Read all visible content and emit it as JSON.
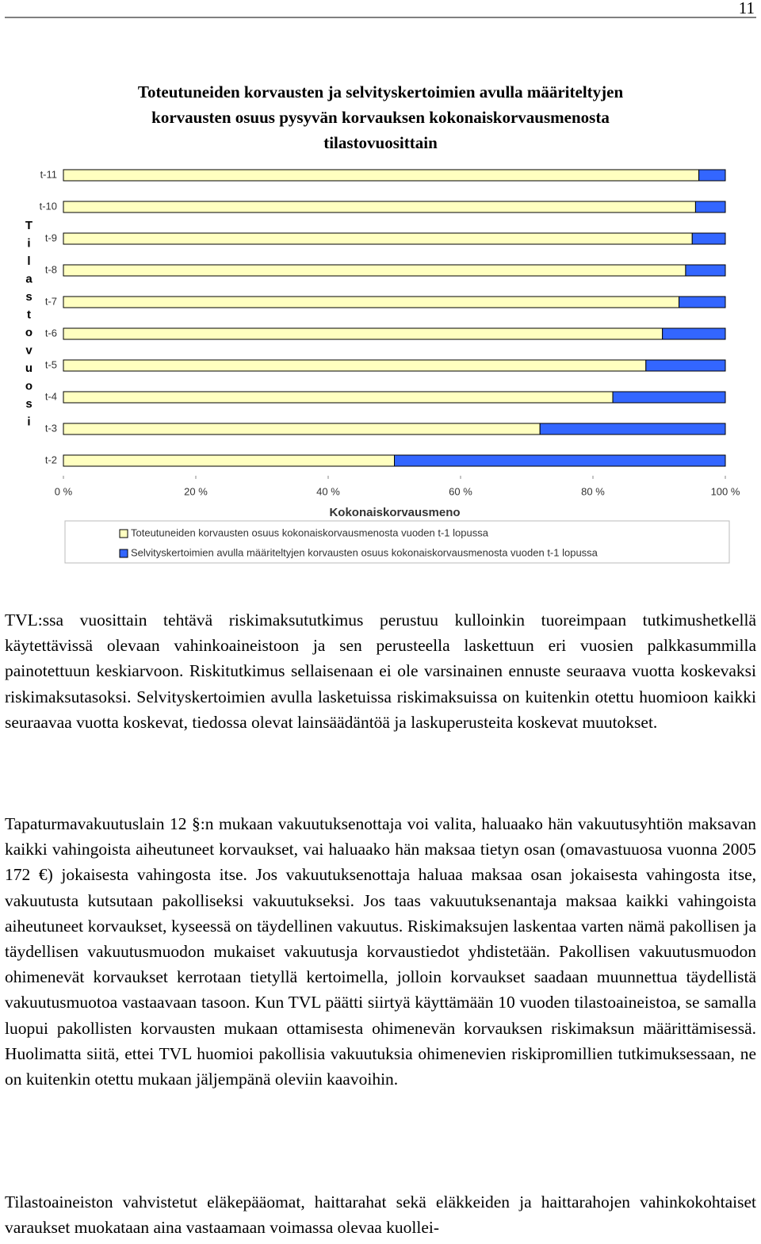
{
  "page_number": "11",
  "chart_data": {
    "type": "stacked-bar-horizontal",
    "title": [
      "Toteutuneiden korvausten ja selvityskertoimien avulla määriteltyjen",
      "korvausten osuus pysyvän korvauksen kokonaiskorvausmenosta",
      "tilastovuosittain"
    ],
    "x_label": "Kokonaiskorvausmeno",
    "y_label": "Tilastovuosi",
    "categories": [
      "t-11",
      "t-10",
      "t-9",
      "t-8",
      "t-7",
      "t-6",
      "t-5",
      "t-4",
      "t-3",
      "t-2"
    ],
    "series": [
      {
        "name": "Toteutuneiden korvausten osuus kokonaiskorvausmenosta vuoden t-1 lopussa",
        "color": "#ffffc0",
        "values": [
          96,
          95.5,
          95,
          94,
          93,
          90.5,
          88,
          83,
          72,
          50
        ]
      },
      {
        "name": "Selvityskertoimien avulla määriteltyjen korvausten osuus kokonaiskorvausmenosta vuoden t-1 lopussa",
        "color": "#3366ff",
        "values": [
          4,
          4.5,
          5,
          6,
          7,
          9.5,
          12,
          17,
          28,
          50
        ]
      }
    ],
    "xlim": [
      0,
      100
    ],
    "xticks": [
      {
        "value": 0,
        "label": "0 %"
      },
      {
        "value": 20,
        "label": "20 %"
      },
      {
        "value": 40,
        "label": "40 %"
      },
      {
        "value": 60,
        "label": "60 %"
      },
      {
        "value": 80,
        "label": "80 %"
      },
      {
        "value": 100,
        "label": "100 %"
      }
    ],
    "legend": "bottom"
  },
  "paragraphs": [
    "TVL:ssa vuosittain tehtävä riskimaksututkimus perustuu kulloinkin tuoreimpaan tutkimushetkellä käytettävissä olevaan vahinkoaineistoon ja sen perusteella laskettuun eri vuosien palkkasummilla painotettuun keskiarvoon. Riskitutkimus sellaisenaan ei ole varsinainen ennuste seuraava vuotta koskevaksi riskimaksutasoksi. Selvityskertoimien avulla lasketuissa riskimaksuissa on kuitenkin otettu huomioon kaikki seuraavaa vuotta koskevat, tiedossa olevat lainsäädäntöä ja laskuperusteita koskevat muutokset.",
    "Tapaturmavakuutuslain 12 §:n mukaan vakuutuksenottaja voi valita, haluaako hän vakuutusyhtiön maksavan kaikki vahingoista aiheutuneet korvaukset, vai haluaako hän maksaa tietyn osan (omavastuuosa vuonna 2005 172 €) jokaisesta vahingosta itse. Jos vakuutuksenottaja haluaa maksaa osan jokaisesta vahingosta itse, vakuutusta kutsutaan pakolliseksi vakuutukseksi. Jos taas vakuutuksenantaja maksaa kaikki vahingoista aiheutuneet korvaukset, kyseessä on täydellinen vakuutus. Riskimaksujen laskentaa varten nämä pakollisen ja täydellisen vakuutusmuodon mukaiset vakuutusja korvaustiedot yhdistetään. Pakollisen vakuutusmuodon ohimenevät korvaukset kerrotaan tietyllä kertoimella, jolloin korvaukset saadaan muunnettua täydellistä vakuutusmuotoa vastaavaan tasoon. Kun TVL päätti siirtyä käyttämään 10 vuoden tilastoaineistoa, se samalla luopui pakollisten korvausten mukaan ottamisesta ohimenevän korvauksen riskimaksun määrittämisessä. Huolimatta siitä, ettei TVL huomioi pakollisia vakuutuksia ohimenevien riskipromillien tutkimuksessaan, ne on kuitenkin otettu mukaan jäljempänä oleviin kaavoihin.",
    "Tilastoaineiston vahvistetut eläkepääomat, haittarahat sekä eläkkeiden ja haittarahojen vahinkokohtaiset varaukset muokataan aina vastaamaan voimassa olevaa kuollei-"
  ]
}
